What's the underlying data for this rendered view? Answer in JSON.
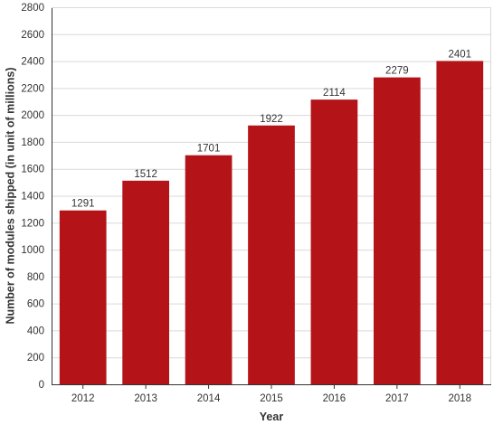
{
  "chart_data": {
    "type": "bar",
    "categories": [
      "2012",
      "2013",
      "2014",
      "2015",
      "2016",
      "2017",
      "2018"
    ],
    "series": [
      {
        "values": [
          1291,
          1512,
          1701,
          1922,
          2114,
          2279,
          2401
        ],
        "color": "#b41418"
      }
    ],
    "data_labels": [
      "1291",
      "1512",
      "1701",
      "1922",
      "2114",
      "2279",
      "2401"
    ],
    "xlabel": "Year",
    "ylabel": "Number of modules shipped (in unit of millions)",
    "ylim": [
      0,
      2800
    ],
    "yticks": [
      0,
      200,
      400,
      600,
      800,
      1000,
      1200,
      1400,
      1600,
      1800,
      2000,
      2200,
      2400,
      2600,
      2800
    ],
    "grid": true,
    "legend": "none"
  }
}
